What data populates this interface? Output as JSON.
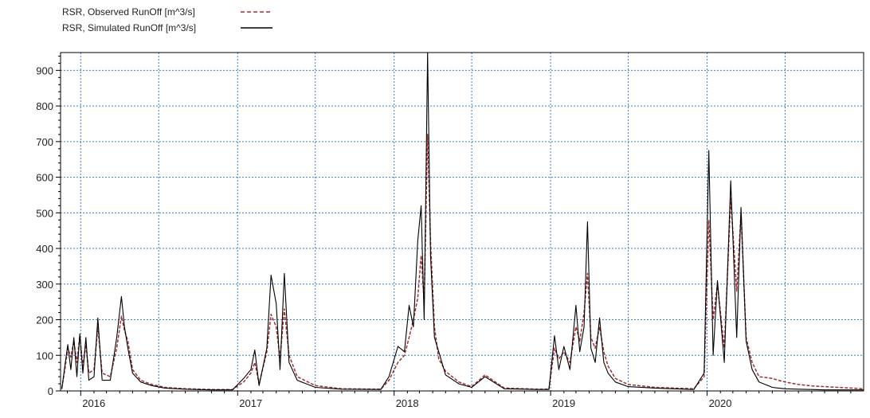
{
  "chart_data": {
    "type": "line",
    "title": "",
    "xlabel": "",
    "ylabel": "",
    "x_range": [
      "2015-11-15",
      "2020-12-31"
    ],
    "ylim": [
      0,
      950
    ],
    "y_ticks": [
      0,
      100,
      200,
      300,
      400,
      500,
      600,
      700,
      800,
      900
    ],
    "x_ticks": [
      {
        "label": "2016",
        "date": "2016-01-01"
      },
      {
        "label": "2017",
        "date": "2017-01-01"
      },
      {
        "label": "2018",
        "date": "2018-01-01"
      },
      {
        "label": "2019",
        "date": "2019-01-01"
      },
      {
        "label": "2020",
        "date": "2020-01-01"
      }
    ],
    "grid": true,
    "legend_position": "top-left",
    "series": [
      {
        "name": "RSR, Observed RunOff [m^3/s]",
        "style": "dashed",
        "color": "#a03030",
        "points": [
          [
            "2015-11-18",
            8
          ],
          [
            "2015-11-25",
            60
          ],
          [
            "2015-12-02",
            120
          ],
          [
            "2015-12-09",
            95
          ],
          [
            "2015-12-16",
            140
          ],
          [
            "2015-12-23",
            80
          ],
          [
            "2015-12-30",
            155
          ],
          [
            "2016-01-06",
            70
          ],
          [
            "2016-01-13",
            130
          ],
          [
            "2016-01-20",
            50
          ],
          [
            "2016-02-01",
            60
          ],
          [
            "2016-02-10",
            180
          ],
          [
            "2016-02-20",
            50
          ],
          [
            "2016-03-10",
            40
          ],
          [
            "2016-03-25",
            120
          ],
          [
            "2016-04-05",
            210
          ],
          [
            "2016-04-12",
            170
          ],
          [
            "2016-04-20",
            140
          ],
          [
            "2016-05-01",
            60
          ],
          [
            "2016-05-20",
            30
          ],
          [
            "2016-06-15",
            18
          ],
          [
            "2016-07-15",
            10
          ],
          [
            "2016-09-01",
            6
          ],
          [
            "2016-11-01",
            4
          ],
          [
            "2016-12-20",
            4
          ],
          [
            "2017-01-15",
            25
          ],
          [
            "2017-02-01",
            50
          ],
          [
            "2017-02-10",
            80
          ],
          [
            "2017-02-20",
            20
          ],
          [
            "2017-03-10",
            110
          ],
          [
            "2017-03-20",
            215
          ],
          [
            "2017-04-01",
            180
          ],
          [
            "2017-04-10",
            90
          ],
          [
            "2017-04-20",
            230
          ],
          [
            "2017-05-01",
            100
          ],
          [
            "2017-05-20",
            40
          ],
          [
            "2017-07-01",
            15
          ],
          [
            "2017-09-01",
            6
          ],
          [
            "2017-12-01",
            5
          ],
          [
            "2017-12-20",
            30
          ],
          [
            "2018-01-10",
            80
          ],
          [
            "2018-01-25",
            100
          ],
          [
            "2018-02-05",
            150
          ],
          [
            "2018-02-15",
            200
          ],
          [
            "2018-02-25",
            260
          ],
          [
            "2018-03-05",
            380
          ],
          [
            "2018-03-12",
            250
          ],
          [
            "2018-03-20",
            720
          ],
          [
            "2018-03-27",
            420
          ],
          [
            "2018-04-05",
            180
          ],
          [
            "2018-04-15",
            90
          ],
          [
            "2018-05-01",
            55
          ],
          [
            "2018-06-01",
            25
          ],
          [
            "2018-07-01",
            12
          ],
          [
            "2018-08-01",
            45
          ],
          [
            "2018-09-15",
            8
          ],
          [
            "2018-12-01",
            5
          ],
          [
            "2018-12-28",
            5
          ],
          [
            "2019-01-10",
            120
          ],
          [
            "2019-01-20",
            90
          ],
          [
            "2019-02-01",
            110
          ],
          [
            "2019-02-15",
            80
          ],
          [
            "2019-03-01",
            180
          ],
          [
            "2019-03-10",
            140
          ],
          [
            "2019-03-20",
            220
          ],
          [
            "2019-03-28",
            330
          ],
          [
            "2019-04-05",
            150
          ],
          [
            "2019-04-15",
            120
          ],
          [
            "2019-04-25",
            180
          ],
          [
            "2019-05-05",
            110
          ],
          [
            "2019-05-15",
            70
          ],
          [
            "2019-06-01",
            35
          ],
          [
            "2019-07-01",
            18
          ],
          [
            "2019-09-01",
            10
          ],
          [
            "2019-12-01",
            6
          ],
          [
            "2019-12-25",
            40
          ],
          [
            "2020-01-05",
            480
          ],
          [
            "2020-01-15",
            200
          ],
          [
            "2020-01-25",
            300
          ],
          [
            "2020-02-10",
            120
          ],
          [
            "2020-02-25",
            540
          ],
          [
            "2020-03-10",
            280
          ],
          [
            "2020-03-20",
            500
          ],
          [
            "2020-04-01",
            150
          ],
          [
            "2020-04-15",
            80
          ],
          [
            "2020-05-01",
            40
          ],
          [
            "2020-06-01",
            35
          ],
          [
            "2020-06-15",
            30
          ],
          [
            "2020-07-01",
            25
          ],
          [
            "2020-08-01",
            18
          ],
          [
            "2020-09-01",
            14
          ],
          [
            "2020-10-01",
            12
          ],
          [
            "2020-11-01",
            10
          ],
          [
            "2020-12-01",
            8
          ],
          [
            "2020-12-31",
            6
          ]
        ]
      },
      {
        "name": "RSR, Simulated RunOff [m^3/s]",
        "style": "solid",
        "color": "#000000",
        "points": [
          [
            "2015-11-18",
            5
          ],
          [
            "2015-11-25",
            70
          ],
          [
            "2015-12-02",
            130
          ],
          [
            "2015-12-09",
            60
          ],
          [
            "2015-12-16",
            150
          ],
          [
            "2015-12-23",
            40
          ],
          [
            "2015-12-30",
            160
          ],
          [
            "2016-01-06",
            50
          ],
          [
            "2016-01-13",
            150
          ],
          [
            "2016-01-20",
            30
          ],
          [
            "2016-02-01",
            40
          ],
          [
            "2016-02-10",
            205
          ],
          [
            "2016-02-20",
            30
          ],
          [
            "2016-03-10",
            30
          ],
          [
            "2016-03-25",
            150
          ],
          [
            "2016-04-05",
            265
          ],
          [
            "2016-04-12",
            180
          ],
          [
            "2016-04-20",
            120
          ],
          [
            "2016-05-01",
            50
          ],
          [
            "2016-05-20",
            25
          ],
          [
            "2016-06-15",
            15
          ],
          [
            "2016-07-15",
            8
          ],
          [
            "2016-09-01",
            5
          ],
          [
            "2016-11-01",
            3
          ],
          [
            "2016-12-20",
            3
          ],
          [
            "2017-01-15",
            35
          ],
          [
            "2017-02-01",
            60
          ],
          [
            "2017-02-10",
            115
          ],
          [
            "2017-02-20",
            15
          ],
          [
            "2017-03-10",
            120
          ],
          [
            "2017-03-20",
            325
          ],
          [
            "2017-04-01",
            245
          ],
          [
            "2017-04-10",
            60
          ],
          [
            "2017-04-20",
            330
          ],
          [
            "2017-05-01",
            80
          ],
          [
            "2017-05-20",
            30
          ],
          [
            "2017-07-01",
            10
          ],
          [
            "2017-09-01",
            5
          ],
          [
            "2017-12-01",
            4
          ],
          [
            "2017-12-20",
            40
          ],
          [
            "2018-01-10",
            125
          ],
          [
            "2018-01-25",
            110
          ],
          [
            "2018-02-05",
            240
          ],
          [
            "2018-02-15",
            180
          ],
          [
            "2018-02-25",
            420
          ],
          [
            "2018-03-05",
            520
          ],
          [
            "2018-03-12",
            200
          ],
          [
            "2018-03-20",
            950
          ],
          [
            "2018-03-27",
            380
          ],
          [
            "2018-04-05",
            150
          ],
          [
            "2018-04-15",
            110
          ],
          [
            "2018-05-01",
            45
          ],
          [
            "2018-06-01",
            20
          ],
          [
            "2018-07-01",
            10
          ],
          [
            "2018-08-01",
            40
          ],
          [
            "2018-09-15",
            6
          ],
          [
            "2018-12-01",
            4
          ],
          [
            "2018-12-28",
            4
          ],
          [
            "2019-01-10",
            155
          ],
          [
            "2019-01-20",
            60
          ],
          [
            "2019-02-01",
            125
          ],
          [
            "2019-02-15",
            60
          ],
          [
            "2019-03-01",
            240
          ],
          [
            "2019-03-10",
            110
          ],
          [
            "2019-03-20",
            180
          ],
          [
            "2019-03-28",
            475
          ],
          [
            "2019-04-05",
            120
          ],
          [
            "2019-04-15",
            80
          ],
          [
            "2019-04-25",
            205
          ],
          [
            "2019-05-05",
            80
          ],
          [
            "2019-05-15",
            50
          ],
          [
            "2019-06-01",
            25
          ],
          [
            "2019-07-01",
            12
          ],
          [
            "2019-09-01",
            8
          ],
          [
            "2019-12-01",
            4
          ],
          [
            "2019-12-25",
            50
          ],
          [
            "2020-01-05",
            675
          ],
          [
            "2020-01-15",
            100
          ],
          [
            "2020-01-25",
            310
          ],
          [
            "2020-02-10",
            80
          ],
          [
            "2020-02-25",
            590
          ],
          [
            "2020-03-10",
            150
          ],
          [
            "2020-03-20",
            515
          ],
          [
            "2020-04-01",
            140
          ],
          [
            "2020-04-15",
            60
          ],
          [
            "2020-05-01",
            25
          ],
          [
            "2020-06-01",
            10
          ],
          [
            "2020-06-15",
            8
          ],
          [
            "2020-07-01",
            6
          ],
          [
            "2020-08-01",
            5
          ],
          [
            "2020-09-01",
            4
          ],
          [
            "2020-10-01",
            3
          ],
          [
            "2020-11-01",
            3
          ],
          [
            "2020-12-01",
            3
          ],
          [
            "2020-12-31",
            3
          ]
        ]
      }
    ]
  }
}
